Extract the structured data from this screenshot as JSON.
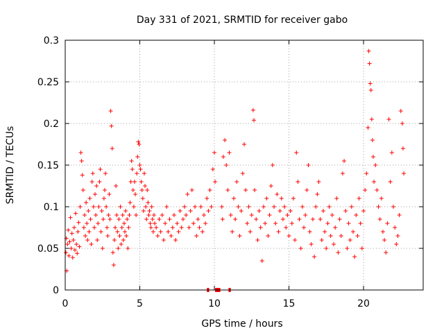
{
  "chart_data": {
    "type": "scatter",
    "title": "Day 331 of 2021, SRMTID for receiver gabo",
    "xlabel": "GPS time / hours",
    "ylabel": "SRMTID / TECUs",
    "xlim": [
      0,
      24
    ],
    "ylim": [
      0,
      0.3
    ],
    "x_ticks": [
      0,
      5,
      10,
      15,
      20
    ],
    "x_tick_labels": [
      "0",
      "5",
      "10",
      "15",
      "20"
    ],
    "y_ticks": [
      0,
      0.05,
      0.1,
      0.15,
      0.2,
      0.25,
      0.3
    ],
    "y_tick_labels": [
      "0",
      "0.05",
      "0.1",
      "0.15",
      "0.2",
      "0.25",
      "0.3"
    ],
    "grid": true,
    "marker": "+",
    "color": "#ff0000",
    "series": [
      {
        "name": "SRMTID",
        "points": [
          [
            0.05,
            0.045
          ],
          [
            0.08,
            0.062
          ],
          [
            0.1,
            0.023
          ],
          [
            0.15,
            0.055
          ],
          [
            0.2,
            0.072
          ],
          [
            0.25,
            0.041
          ],
          [
            0.3,
            0.058
          ],
          [
            0.35,
            0.087
          ],
          [
            0.4,
            0.05
          ],
          [
            0.45,
            0.068
          ],
          [
            0.5,
            0.039
          ],
          [
            0.55,
            0.06
          ],
          [
            0.6,
            0.075
          ],
          [
            0.65,
            0.048
          ],
          [
            0.7,
            0.092
          ],
          [
            0.75,
            0.055
          ],
          [
            0.8,
            0.044
          ],
          [
            0.85,
            0.07
          ],
          [
            0.9,
            0.081
          ],
          [
            0.95,
            0.052
          ],
          [
            1.0,
            0.1
          ],
          [
            1.05,
            0.165
          ],
          [
            1.1,
            0.155
          ],
          [
            1.15,
            0.138
          ],
          [
            1.2,
            0.12
          ],
          [
            1.25,
            0.075
          ],
          [
            1.3,
            0.09
          ],
          [
            1.35,
            0.065
          ],
          [
            1.4,
            0.105
          ],
          [
            1.45,
            0.08
          ],
          [
            1.5,
            0.06
          ],
          [
            1.55,
            0.095
          ],
          [
            1.6,
            0.07
          ],
          [
            1.65,
            0.11
          ],
          [
            1.7,
            0.085
          ],
          [
            1.75,
            0.055
          ],
          [
            1.8,
            0.13
          ],
          [
            1.85,
            0.14
          ],
          [
            1.9,
            0.1
          ],
          [
            1.95,
            0.075
          ],
          [
            2.0,
            0.115
          ],
          [
            2.05,
            0.09
          ],
          [
            2.1,
            0.125
          ],
          [
            2.15,
            0.06
          ],
          [
            2.2,
            0.08
          ],
          [
            2.25,
            0.1
          ],
          [
            2.3,
            0.13
          ],
          [
            2.35,
            0.145
          ],
          [
            2.4,
            0.07
          ],
          [
            2.45,
            0.095
          ],
          [
            2.5,
            0.05
          ],
          [
            2.55,
            0.085
          ],
          [
            2.6,
            0.11
          ],
          [
            2.65,
            0.12
          ],
          [
            2.7,
            0.14
          ],
          [
            2.75,
            0.1
          ],
          [
            2.8,
            0.075
          ],
          [
            2.85,
            0.065
          ],
          [
            2.9,
            0.09
          ],
          [
            2.95,
            0.115
          ],
          [
            3.0,
            0.085
          ],
          [
            3.05,
            0.215
          ],
          [
            3.1,
            0.197
          ],
          [
            3.15,
            0.17
          ],
          [
            3.2,
            0.045
          ],
          [
            3.25,
            0.03
          ],
          [
            3.3,
            0.06
          ],
          [
            3.35,
            0.075
          ],
          [
            3.4,
            0.125
          ],
          [
            3.45,
            0.09
          ],
          [
            3.5,
            0.07
          ],
          [
            3.55,
            0.05
          ],
          [
            3.6,
            0.085
          ],
          [
            3.65,
            0.065
          ],
          [
            3.7,
            0.1
          ],
          [
            3.75,
            0.055
          ],
          [
            3.8,
            0.075
          ],
          [
            3.85,
            0.09
          ],
          [
            3.9,
            0.06
          ],
          [
            3.95,
            0.08
          ],
          [
            4.0,
            0.07
          ],
          [
            4.05,
            0.095
          ],
          [
            4.1,
            0.065
          ],
          [
            4.15,
            0.085
          ],
          [
            4.2,
            0.05
          ],
          [
            4.25,
            0.075
          ],
          [
            4.3,
            0.09
          ],
          [
            4.35,
            0.105
          ],
          [
            4.4,
            0.13
          ],
          [
            4.45,
            0.155
          ],
          [
            4.5,
            0.145
          ],
          [
            4.55,
            0.12
          ],
          [
            4.6,
            0.1
          ],
          [
            4.65,
            0.13
          ],
          [
            4.7,
            0.115
          ],
          [
            4.75,
            0.09
          ],
          [
            4.8,
            0.14
          ],
          [
            4.85,
            0.16
          ],
          [
            4.9,
            0.178
          ],
          [
            4.95,
            0.175
          ],
          [
            5.0,
            0.15
          ],
          [
            5.05,
            0.145
          ],
          [
            5.1,
            0.13
          ],
          [
            5.15,
            0.12
          ],
          [
            5.2,
            0.11
          ],
          [
            5.25,
            0.095
          ],
          [
            5.3,
            0.14
          ],
          [
            5.35,
            0.125
          ],
          [
            5.4,
            0.1
          ],
          [
            5.45,
            0.085
          ],
          [
            5.5,
            0.12
          ],
          [
            5.55,
            0.105
          ],
          [
            5.6,
            0.09
          ],
          [
            5.65,
            0.095
          ],
          [
            5.7,
            0.08
          ],
          [
            5.75,
            0.075
          ],
          [
            5.8,
            0.1
          ],
          [
            5.85,
            0.085
          ],
          [
            5.9,
            0.07
          ],
          [
            5.95,
            0.09
          ],
          [
            6.0,
            0.08
          ],
          [
            6.1,
            0.075
          ],
          [
            6.2,
            0.065
          ],
          [
            6.3,
            0.085
          ],
          [
            6.4,
            0.07
          ],
          [
            6.5,
            0.09
          ],
          [
            6.6,
            0.06
          ],
          [
            6.7,
            0.08
          ],
          [
            6.8,
            0.1
          ],
          [
            6.9,
            0.07
          ],
          [
            7.0,
            0.085
          ],
          [
            7.1,
            0.065
          ],
          [
            7.2,
            0.075
          ],
          [
            7.3,
            0.09
          ],
          [
            7.4,
            0.06
          ],
          [
            7.5,
            0.08
          ],
          [
            7.6,
            0.07
          ],
          [
            7.7,
            0.095
          ],
          [
            7.8,
            0.075
          ],
          [
            7.9,
            0.085
          ],
          [
            8.0,
            0.1
          ],
          [
            8.1,
            0.09
          ],
          [
            8.2,
            0.115
          ],
          [
            8.3,
            0.075
          ],
          [
            8.4,
            0.095
          ],
          [
            8.5,
            0.12
          ],
          [
            8.6,
            0.08
          ],
          [
            8.7,
            0.1
          ],
          [
            8.8,
            0.065
          ],
          [
            8.9,
            0.085
          ],
          [
            9.0,
            0.075
          ],
          [
            9.1,
            0.1
          ],
          [
            9.2,
            0.07
          ],
          [
            9.3,
            0.09
          ],
          [
            9.4,
            0.08
          ],
          [
            9.5,
            0.11
          ],
          [
            9.6,
            0.095
          ],
          [
            9.7,
            0.12
          ],
          [
            9.8,
            0.1
          ],
          [
            9.9,
            0.145
          ],
          [
            10.0,
            0.165
          ],
          [
            10.05,
            0.13
          ],
          [
            10.5,
            0.1
          ],
          [
            10.55,
            0.085
          ],
          [
            10.6,
            0.16
          ],
          [
            10.7,
            0.18
          ],
          [
            10.8,
            0.15
          ],
          [
            10.9,
            0.12
          ],
          [
            11.0,
            0.165
          ],
          [
            11.1,
            0.09
          ],
          [
            11.2,
            0.07
          ],
          [
            11.3,
            0.11
          ],
          [
            11.4,
            0.085
          ],
          [
            11.5,
            0.13
          ],
          [
            11.6,
            0.1
          ],
          [
            11.7,
            0.065
          ],
          [
            11.8,
            0.095
          ],
          [
            11.9,
            0.14
          ],
          [
            12.0,
            0.175
          ],
          [
            12.1,
            0.12
          ],
          [
            12.2,
            0.08
          ],
          [
            12.3,
            0.1
          ],
          [
            12.4,
            0.07
          ],
          [
            12.5,
            0.09
          ],
          [
            12.6,
            0.216
          ],
          [
            12.65,
            0.204
          ],
          [
            12.7,
            0.12
          ],
          [
            12.8,
            0.085
          ],
          [
            12.9,
            0.06
          ],
          [
            13.0,
            0.095
          ],
          [
            13.1,
            0.075
          ],
          [
            13.2,
            0.035
          ],
          [
            13.3,
            0.1
          ],
          [
            13.4,
            0.08
          ],
          [
            13.5,
            0.11
          ],
          [
            13.6,
            0.065
          ],
          [
            13.7,
            0.09
          ],
          [
            13.8,
            0.125
          ],
          [
            13.9,
            0.15
          ],
          [
            14.0,
            0.1
          ],
          [
            14.1,
            0.08
          ],
          [
            14.2,
            0.115
          ],
          [
            14.3,
            0.07
          ],
          [
            14.4,
            0.095
          ],
          [
            14.5,
            0.11
          ],
          [
            14.6,
            0.085
          ],
          [
            14.7,
            0.1
          ],
          [
            14.8,
            0.075
          ],
          [
            14.9,
            0.09
          ],
          [
            15.0,
            0.065
          ],
          [
            15.1,
            0.095
          ],
          [
            15.2,
            0.08
          ],
          [
            15.3,
            0.11
          ],
          [
            15.4,
            0.06
          ],
          [
            15.5,
            0.165
          ],
          [
            15.6,
            0.13
          ],
          [
            15.7,
            0.085
          ],
          [
            15.8,
            0.05
          ],
          [
            15.9,
            0.1
          ],
          [
            16.0,
            0.075
          ],
          [
            16.1,
            0.09
          ],
          [
            16.2,
            0.12
          ],
          [
            16.3,
            0.15
          ],
          [
            16.4,
            0.07
          ],
          [
            16.5,
            0.055
          ],
          [
            16.6,
            0.085
          ],
          [
            16.7,
            0.04
          ],
          [
            16.8,
            0.1
          ],
          [
            16.9,
            0.115
          ],
          [
            17.0,
            0.13
          ],
          [
            17.1,
            0.085
          ],
          [
            17.2,
            0.06
          ],
          [
            17.3,
            0.095
          ],
          [
            17.4,
            0.07
          ],
          [
            17.5,
            0.05
          ],
          [
            17.6,
            0.08
          ],
          [
            17.7,
            0.1
          ],
          [
            17.8,
            0.065
          ],
          [
            17.9,
            0.09
          ],
          [
            18.0,
            0.055
          ],
          [
            18.1,
            0.075
          ],
          [
            18.2,
            0.11
          ],
          [
            18.3,
            0.045
          ],
          [
            18.4,
            0.085
          ],
          [
            18.5,
            0.065
          ],
          [
            18.6,
            0.14
          ],
          [
            18.7,
            0.155
          ],
          [
            18.8,
            0.095
          ],
          [
            18.9,
            0.05
          ],
          [
            19.0,
            0.08
          ],
          [
            19.1,
            0.06
          ],
          [
            19.2,
            0.1
          ],
          [
            19.3,
            0.07
          ],
          [
            19.4,
            0.04
          ],
          [
            19.5,
            0.09
          ],
          [
            19.6,
            0.065
          ],
          [
            19.7,
            0.11
          ],
          [
            19.8,
            0.08
          ],
          [
            19.9,
            0.05
          ],
          [
            20.0,
            0.095
          ],
          [
            20.1,
            0.12
          ],
          [
            20.2,
            0.14
          ],
          [
            20.3,
            0.195
          ],
          [
            20.35,
            0.287
          ],
          [
            20.4,
            0.272
          ],
          [
            20.45,
            0.248
          ],
          [
            20.5,
            0.24
          ],
          [
            20.55,
            0.205
          ],
          [
            20.6,
            0.18
          ],
          [
            20.65,
            0.16
          ],
          [
            20.7,
            0.13
          ],
          [
            20.8,
            0.15
          ],
          [
            20.9,
            0.12
          ],
          [
            21.0,
            0.1
          ],
          [
            21.1,
            0.085
          ],
          [
            21.2,
            0.11
          ],
          [
            21.3,
            0.07
          ],
          [
            21.4,
            0.06
          ],
          [
            21.5,
            0.045
          ],
          [
            21.6,
            0.08
          ],
          [
            21.7,
            0.205
          ],
          [
            21.8,
            0.13
          ],
          [
            21.9,
            0.165
          ],
          [
            22.0,
            0.1
          ],
          [
            22.1,
            0.075
          ],
          [
            22.2,
            0.055
          ],
          [
            22.3,
            0.065
          ],
          [
            22.4,
            0.09
          ],
          [
            22.5,
            0.215
          ],
          [
            22.6,
            0.2
          ],
          [
            22.65,
            0.17
          ],
          [
            22.7,
            0.14
          ]
        ]
      }
    ],
    "data_gaps": [
      {
        "start": 9.5,
        "end": 9.65
      },
      {
        "start": 10.05,
        "end": 10.4
      },
      {
        "start": 10.95,
        "end": 11.1
      }
    ]
  }
}
